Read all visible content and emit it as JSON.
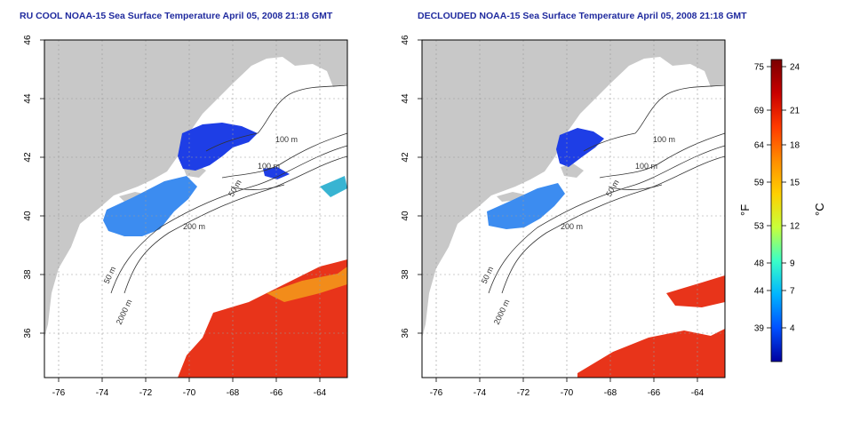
{
  "panels": [
    {
      "title": "RU COOL NOAA-15 Sea Surface Temperature April 05, 2008 21:18 GMT",
      "contour_labels": [
        "100 m",
        "100 m",
        "50 m",
        "200 m",
        "50 m",
        "2000 m"
      ]
    },
    {
      "title": "DECLOUDED NOAA-15 Sea Surface Temperature April 05, 2008 21:18 GMT",
      "contour_labels": [
        "100 m",
        "100 m",
        "50 m",
        "200 m",
        "50 m",
        "2000 m"
      ]
    }
  ],
  "axes": {
    "x_ticks": [
      "-76",
      "-74",
      "-72",
      "-70",
      "-68",
      "-66",
      "-64"
    ],
    "y_ticks": [
      "46",
      "44",
      "42",
      "40",
      "38",
      "36"
    ]
  },
  "colorbar": {
    "f_ticks": [
      "75",
      "69",
      "64",
      "59",
      "53",
      "48",
      "44",
      "39"
    ],
    "c_ticks": [
      "24",
      "21",
      "18",
      "15",
      "12",
      "9",
      "7",
      "4"
    ],
    "f_label": "°F",
    "c_label": "°C",
    "colors": [
      "#7a0000",
      "#c80000",
      "#ff3a00",
      "#ff8c00",
      "#ffd000",
      "#c8ff3a",
      "#3affc8",
      "#00b4ff",
      "#0050ff",
      "#0000a0"
    ]
  },
  "colors": {
    "land": "#c8c8c8",
    "title": "#1f2a9e",
    "cold_water": "#1e3ee6",
    "cool_water": "#3c8cf0",
    "warm_water": "#e8341a"
  }
}
